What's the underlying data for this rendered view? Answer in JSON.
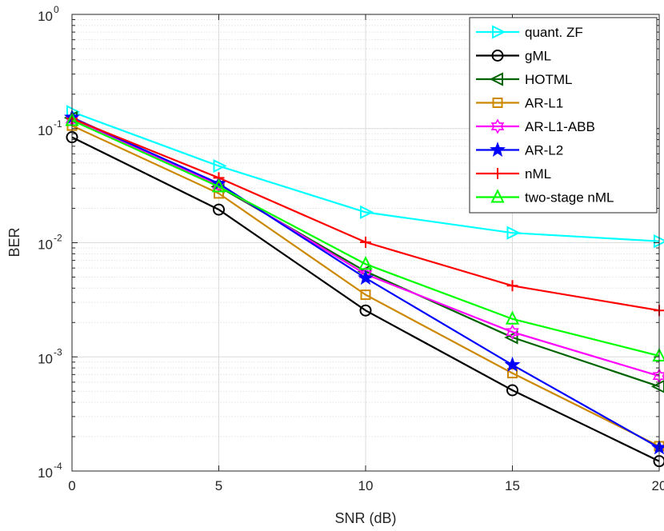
{
  "chart_data": {
    "type": "line",
    "xlabel": "SNR (dB)",
    "ylabel": "BER",
    "yscale": "log",
    "xlim": [
      0,
      20
    ],
    "ylim": [
      0.0001,
      1
    ],
    "grid": true,
    "legend_position": "top-right",
    "xticks": [
      {
        "value": 0,
        "label": "0"
      },
      {
        "value": 5,
        "label": "5"
      },
      {
        "value": 10,
        "label": "10"
      },
      {
        "value": 15,
        "label": "15"
      },
      {
        "value": 20,
        "label": "20"
      }
    ],
    "yticks": [
      {
        "value": 0.0001,
        "base": "10",
        "exp": "-4"
      },
      {
        "value": 0.001,
        "base": "10",
        "exp": "-3"
      },
      {
        "value": 0.01,
        "base": "10",
        "exp": "-2"
      },
      {
        "value": 0.1,
        "base": "10",
        "exp": "-1"
      },
      {
        "value": 1,
        "base": "10",
        "exp": "0"
      }
    ],
    "x": [
      0,
      5,
      10,
      15,
      20
    ],
    "series": [
      {
        "name": "quant. ZF",
        "color": "#00ffff",
        "marker": "triangle-right",
        "values": [
          0.14,
          0.047,
          0.0185,
          0.0122,
          0.0103
        ]
      },
      {
        "name": "gML",
        "color": "#000000",
        "marker": "circle",
        "values": [
          0.084,
          0.0195,
          0.00255,
          0.00051,
          0.000122
        ]
      },
      {
        "name": "HOTML",
        "color": "#006400",
        "marker": "triangle-left",
        "values": [
          0.124,
          0.031,
          0.0056,
          0.00148,
          0.00055
        ]
      },
      {
        "name": "AR-L1",
        "color": "#cc8800",
        "marker": "square",
        "values": [
          0.106,
          0.027,
          0.0035,
          0.00072,
          0.000165
        ]
      },
      {
        "name": "AR-L1-ABB",
        "color": "#ff00ff",
        "marker": "hexagram",
        "values": [
          0.12,
          0.032,
          0.0053,
          0.00165,
          0.00068
        ]
      },
      {
        "name": "AR-L2",
        "color": "#0000ff",
        "marker": "pentagram",
        "values": [
          0.125,
          0.033,
          0.0049,
          0.00085,
          0.00016
        ]
      },
      {
        "name": "nML",
        "color": "#ff0000",
        "marker": "plus",
        "values": [
          0.122,
          0.037,
          0.0101,
          0.0042,
          0.00255
        ]
      },
      {
        "name": "two-stage nML",
        "color": "#00ff00",
        "marker": "triangle-up",
        "values": [
          0.118,
          0.031,
          0.0065,
          0.00215,
          0.00102
        ]
      }
    ]
  }
}
